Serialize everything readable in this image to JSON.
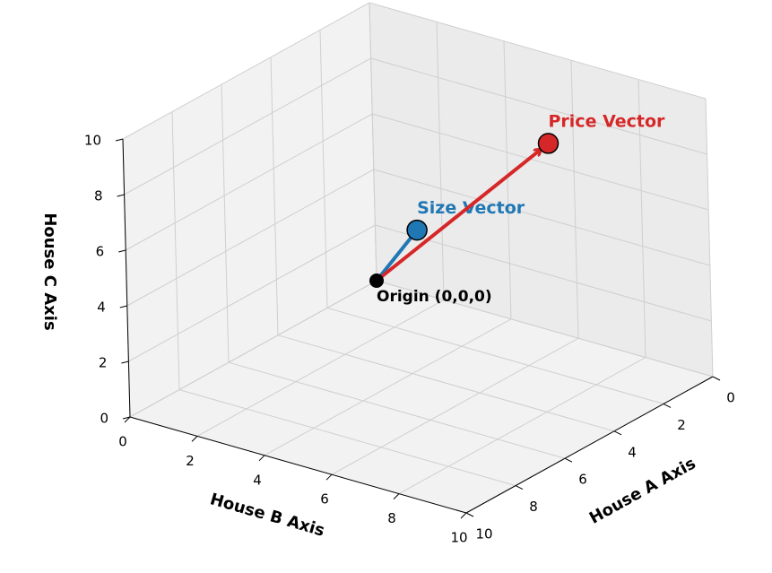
{
  "chart_data": {
    "type": "vector3d",
    "xlabel": "House A Axis",
    "ylabel": "House B Axis",
    "zlabel": "House C Axis",
    "xlim": [
      0,
      10
    ],
    "ylim": [
      0,
      10
    ],
    "zlim": [
      0,
      10
    ],
    "xticks": [
      0,
      2,
      4,
      6,
      8,
      10
    ],
    "yticks": [
      0,
      2,
      4,
      6,
      8,
      10
    ],
    "zticks": [
      0,
      2,
      4,
      6,
      8,
      10
    ],
    "grid": true,
    "origin": {
      "label": "Origin (0,0,0)",
      "x": 0,
      "y": 0,
      "z": 0,
      "color": "#000000"
    },
    "vectors": [
      {
        "name": "Size Vector",
        "color": "#1f77b4",
        "x": 1,
        "y": 2,
        "z": 3
      },
      {
        "name": "Price Vector",
        "color": "#d62728",
        "x": 1,
        "y": 6,
        "z": 7.5
      }
    ]
  }
}
